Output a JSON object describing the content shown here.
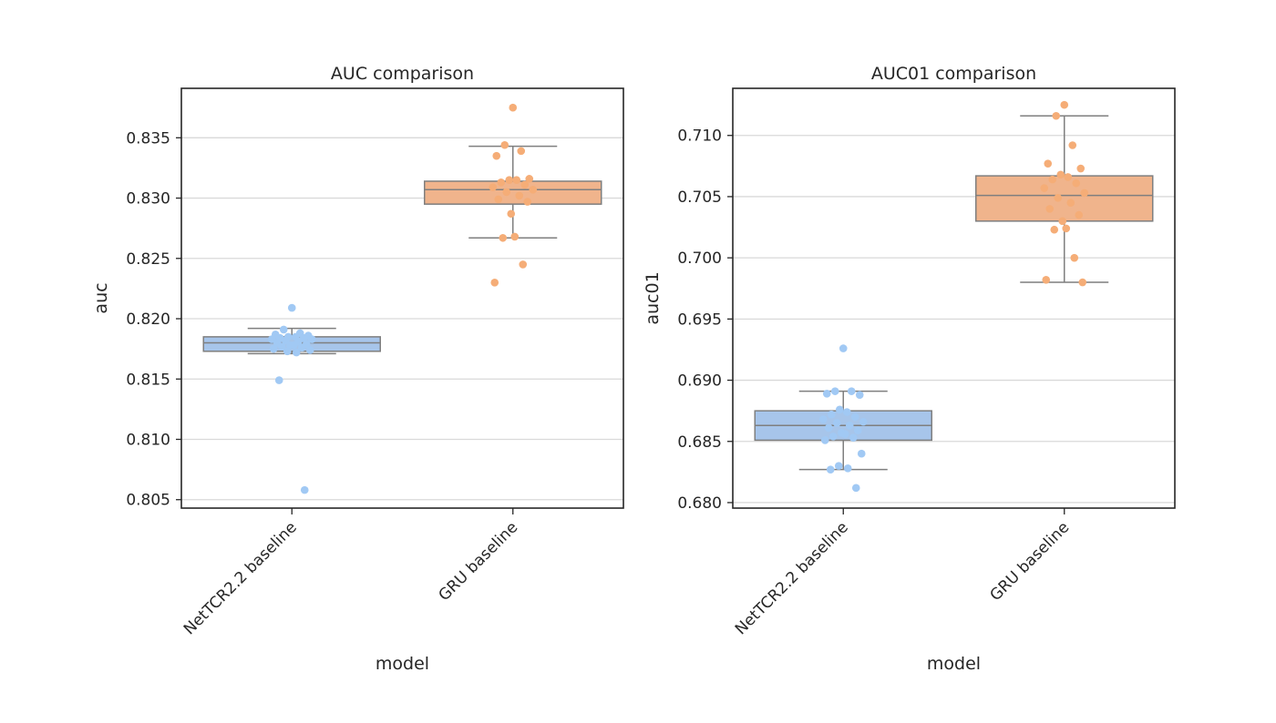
{
  "colors": {
    "series_1": "#a1c9f4",
    "series_1_box": "#a7c5ea",
    "series_2": "#f5ad77",
    "series_2_box": "#f0b48c",
    "grid": "#d9d9d9",
    "box_line": "#7f7f7f",
    "frame": "#262626"
  },
  "chart_data": [
    {
      "type": "box",
      "title": "AUC comparison",
      "xlabel": "model",
      "ylabel": "auc",
      "categories": [
        "NetTCR2.2 baseline",
        "GRU baseline"
      ],
      "ylim": [
        0.8043,
        0.8391
      ],
      "yticks": [
        0.805,
        0.81,
        0.815,
        0.82,
        0.825,
        0.83,
        0.835
      ],
      "ytick_labels": [
        "0.805",
        "0.810",
        "0.815",
        "0.820",
        "0.825",
        "0.830",
        "0.835"
      ],
      "grid": true,
      "boxes": [
        {
          "name": "NetTCR2.2 baseline",
          "whislo": 0.8171,
          "q1": 0.8173,
          "med": 0.818,
          "q3": 0.8185,
          "whishi": 0.8192,
          "points": [
            0.8209,
            0.8191,
            0.8188,
            0.8187,
            0.8186,
            0.8185,
            0.8185,
            0.8184,
            0.8184,
            0.8183,
            0.8183,
            0.8182,
            0.8181,
            0.818,
            0.8179,
            0.8178,
            0.8178,
            0.8177,
            0.8176,
            0.8175,
            0.8174,
            0.8173,
            0.8172,
            0.8149,
            0.8058
          ]
        },
        {
          "name": "GRU baseline",
          "whislo": 0.8267,
          "q1": 0.8295,
          "med": 0.8307,
          "q3": 0.8314,
          "whishi": 0.8343,
          "points": [
            0.8375,
            0.8344,
            0.8339,
            0.8335,
            0.8316,
            0.8315,
            0.8315,
            0.8313,
            0.8311,
            0.8309,
            0.8307,
            0.8305,
            0.8302,
            0.8299,
            0.8297,
            0.8287,
            0.8268,
            0.8267,
            0.8245,
            0.823
          ]
        }
      ]
    },
    {
      "type": "box",
      "title": "AUC01 comparison",
      "xlabel": "model",
      "ylabel": "auc01",
      "categories": [
        "NetTCR2.2 baseline",
        "GRU baseline"
      ],
      "ylim": [
        0.67955,
        0.71385
      ],
      "yticks": [
        0.68,
        0.685,
        0.69,
        0.695,
        0.7,
        0.705,
        0.71
      ],
      "ytick_labels": [
        "0.680",
        "0.685",
        "0.690",
        "0.695",
        "0.700",
        "0.705",
        "0.710"
      ],
      "grid": true,
      "boxes": [
        {
          "name": "NetTCR2.2 baseline",
          "whislo": 0.6827,
          "q1": 0.6851,
          "med": 0.6863,
          "q3": 0.6875,
          "whishi": 0.6891,
          "points": [
            0.6926,
            0.6891,
            0.6891,
            0.6889,
            0.6888,
            0.6876,
            0.6874,
            0.6872,
            0.687,
            0.6868,
            0.6866,
            0.6865,
            0.6863,
            0.6861,
            0.6859,
            0.6857,
            0.6856,
            0.6854,
            0.6853,
            0.6851,
            0.684,
            0.683,
            0.6828,
            0.6827,
            0.6812
          ]
        },
        {
          "name": "GRU baseline",
          "whislo": 0.698,
          "q1": 0.703,
          "med": 0.7051,
          "q3": 0.7067,
          "whishi": 0.7116,
          "points": [
            0.7125,
            0.7116,
            0.7092,
            0.7077,
            0.7073,
            0.7068,
            0.7066,
            0.7064,
            0.7061,
            0.7057,
            0.7053,
            0.7049,
            0.7045,
            0.704,
            0.7035,
            0.703,
            0.7024,
            0.7023,
            0.7,
            0.6982,
            0.698
          ]
        }
      ]
    }
  ]
}
